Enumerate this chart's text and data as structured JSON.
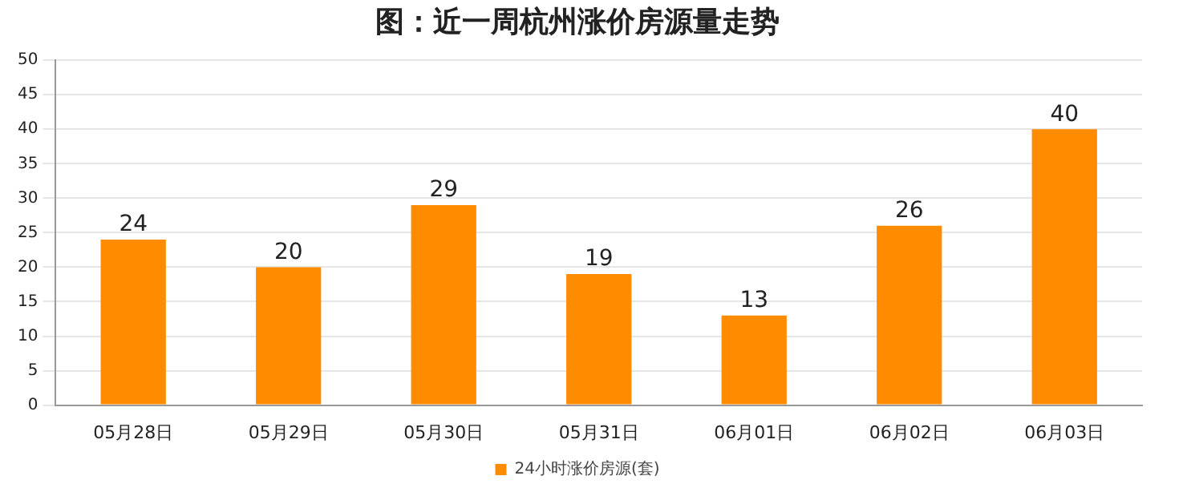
{
  "chart_data": {
    "type": "bar",
    "title": "图：近一周杭州涨价房源量走势",
    "categories": [
      "05月28日",
      "05月29日",
      "05月30日",
      "05月31日",
      "06月01日",
      "06月02日",
      "06月03日"
    ],
    "series": [
      {
        "name": "24小时涨价房源(套)",
        "color": "#ff8c00",
        "values": [
          24,
          20,
          29,
          19,
          13,
          26,
          40
        ]
      }
    ],
    "ylim": [
      0,
      50
    ],
    "yticks": [
      0,
      5,
      10,
      15,
      20,
      25,
      30,
      35,
      40,
      45,
      50
    ],
    "grid": "y",
    "legend": "bottom",
    "data_labels": true
  }
}
